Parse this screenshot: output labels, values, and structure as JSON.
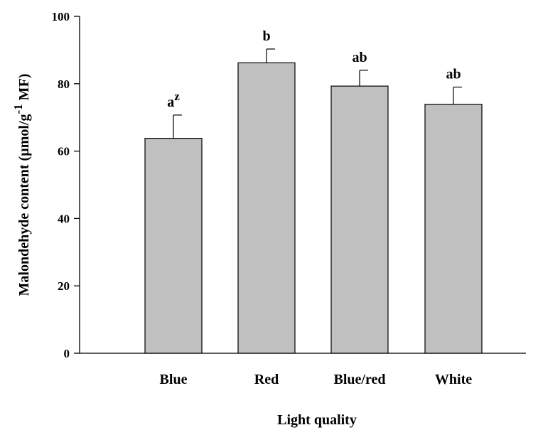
{
  "chart_data": {
    "type": "bar",
    "title": "",
    "xlabel": "Light quality",
    "ylabel": {
      "main": "Malondehyde content (µmol/g",
      "superscript": "-1",
      "suffix": " MF)"
    },
    "categories": [
      "Blue",
      "Red",
      "Blue/red",
      "White"
    ],
    "values": [
      63.8,
      86.2,
      79.3,
      73.9
    ],
    "error": [
      6.9,
      4.1,
      4.7,
      5.1
    ],
    "significance": [
      {
        "letter": "a",
        "superscript": "z"
      },
      {
        "letter": "b",
        "superscript": ""
      },
      {
        "letter": "ab",
        "superscript": ""
      },
      {
        "letter": "ab",
        "superscript": ""
      }
    ],
    "ylim": [
      0,
      100
    ],
    "yticks": [
      0,
      20,
      40,
      60,
      80,
      100
    ],
    "bar_color": "#c0c0c0",
    "grid": false,
    "legend": "none"
  }
}
